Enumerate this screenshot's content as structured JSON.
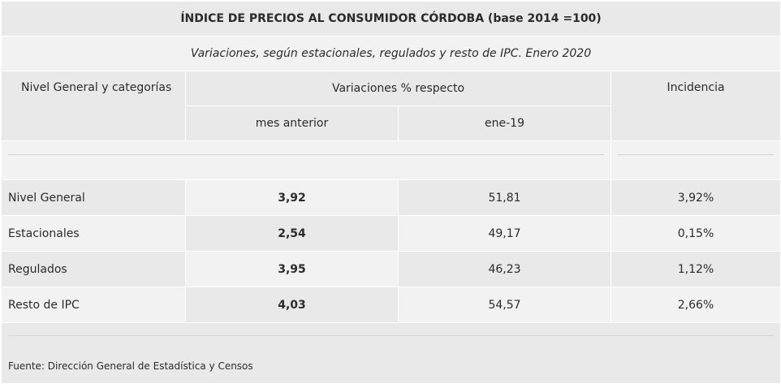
{
  "title": "ÍNDICE DE PRECIOS AL CONSUMIDOR CÓRDOBA (base 2014 =100)",
  "subtitle": "Variaciones, según estacionales, regulados y resto de IPC. Enero 2020",
  "headers": {
    "category": "Nivel General y categorías",
    "variations": "Variaciones % respecto",
    "prev_month": "mes anterior",
    "year_ago": "ene-19",
    "incidence": "Incidencia"
  },
  "rows": [
    {
      "label": "Nivel General",
      "prev_month": "3,92",
      "year_ago": "51,81",
      "incidence": "3,92%"
    },
    {
      "label": "Estacionales",
      "prev_month": "2,54",
      "year_ago": "49,17",
      "incidence": "0,15%"
    },
    {
      "label": "Regulados",
      "prev_month": "3,95",
      "year_ago": "46,23",
      "incidence": "1,12%"
    },
    {
      "label": "Resto de IPC",
      "prev_month": "4,03",
      "year_ago": "54,57",
      "incidence": "2,66%"
    }
  ],
  "footer": "Fuente: Dirección General de Estadística y Censos"
}
